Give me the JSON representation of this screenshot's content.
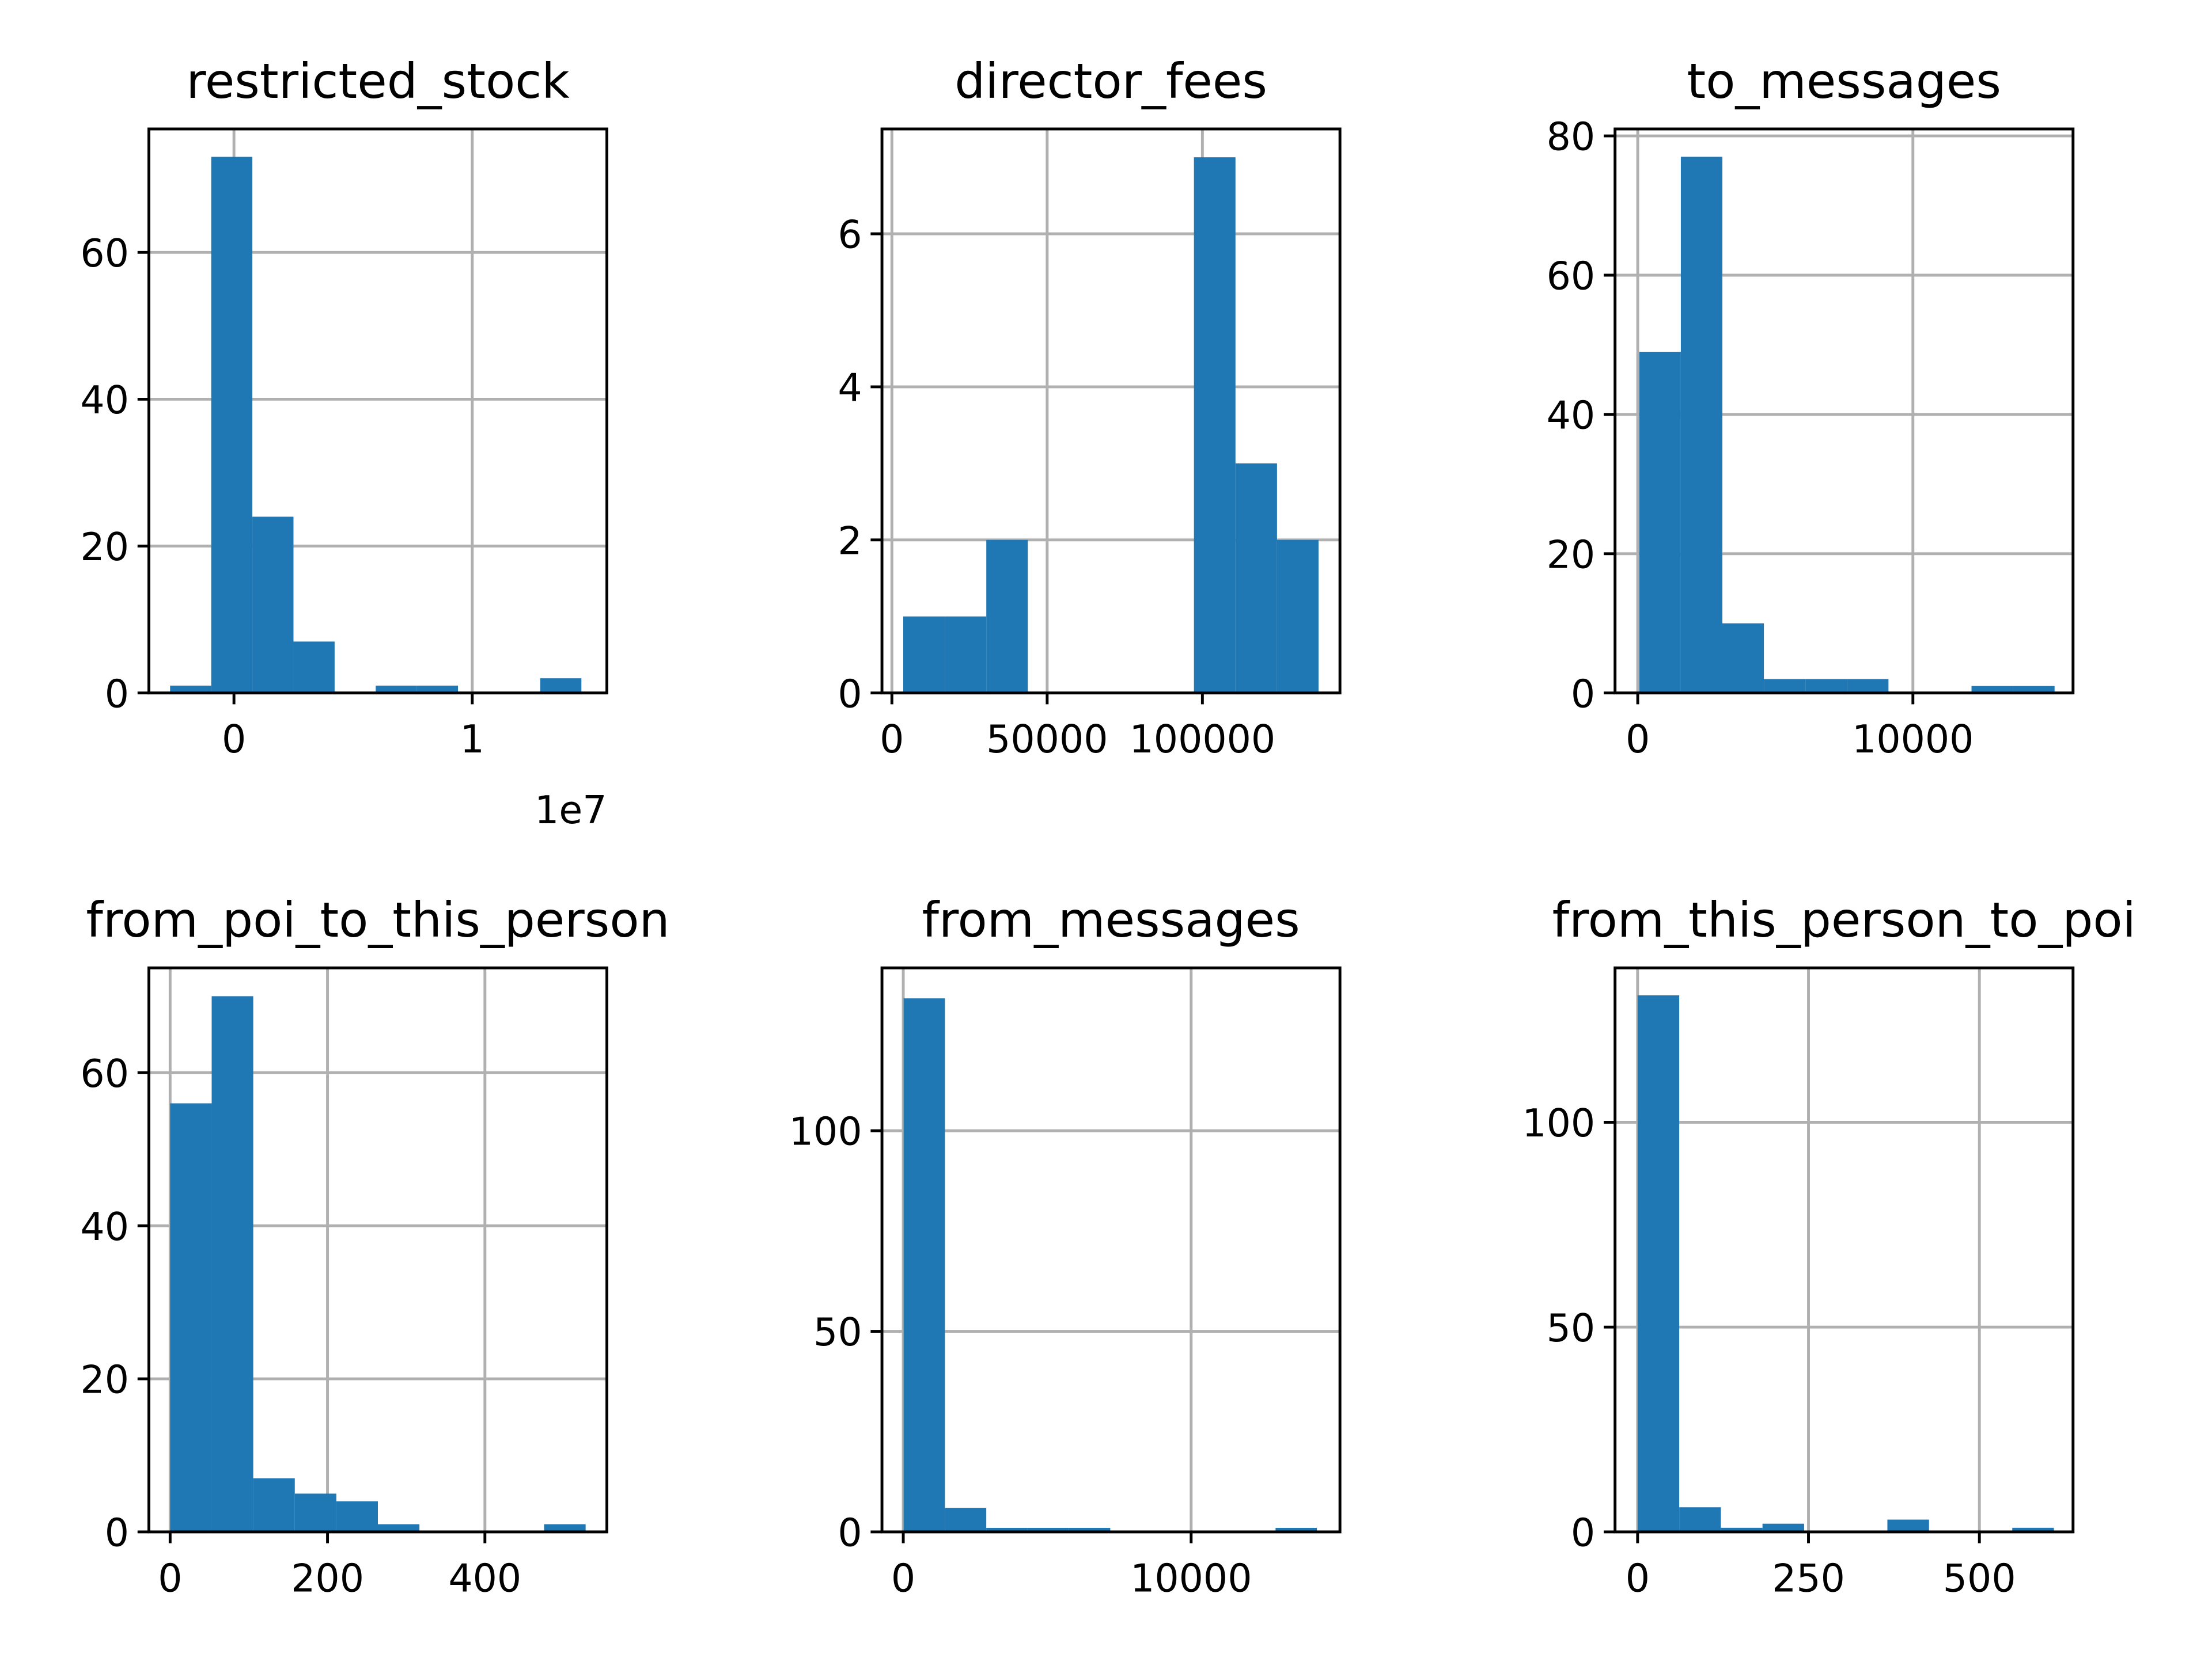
{
  "chart_data": [
    {
      "type": "histogram",
      "title": "restricted_stock",
      "color": "#1f77b4",
      "grid": true,
      "bins": [
        -0.268,
        -0.0954,
        0.0772,
        0.2498,
        0.4224,
        0.595,
        0.7676,
        0.9402,
        1.1128,
        1.2854,
        1.458
      ],
      "values": [
        1,
        73,
        24,
        7,
        0,
        1,
        1,
        0,
        0,
        2
      ],
      "xlim": [
        -0.357,
        1.565
      ],
      "xticks": [
        0,
        1
      ],
      "x_offset_label": "1e7",
      "ylim": [
        0,
        76.8
      ],
      "yticks": [
        0,
        20,
        40,
        60
      ]
    },
    {
      "type": "histogram",
      "title": "director_fees",
      "color": "#1f77b4",
      "grid": true,
      "bins": [
        3650,
        17025,
        30400,
        43775,
        57150,
        70525,
        83900,
        97275,
        110650,
        124025,
        137400
      ],
      "values": [
        1,
        1,
        2,
        0,
        0,
        0,
        0,
        7,
        3,
        2
      ],
      "xlim": [
        -3200,
        144300
      ],
      "xticks": [
        0,
        50000,
        100000
      ],
      "ylim": [
        0,
        7.37
      ],
      "yticks": [
        0,
        2,
        4,
        6
      ]
    },
    {
      "type": "histogram",
      "title": "to_messages",
      "color": "#1f77b4",
      "grid": true,
      "bins": [
        57,
        1566.2,
        3075.4,
        4584.6,
        6093.8,
        7603,
        9112.2,
        10621.4,
        12130.6,
        13639.8,
        15149
      ],
      "values": [
        49,
        77,
        10,
        2,
        2,
        2,
        0,
        0,
        1,
        1
      ],
      "xlim": [
        -825,
        15820
      ],
      "xticks": [
        0,
        10000
      ],
      "ylim": [
        0,
        81
      ],
      "yticks": [
        0,
        20,
        40,
        60,
        80
      ]
    },
    {
      "type": "histogram",
      "title": "from_poi_to_this_person",
      "color": "#1f77b4",
      "grid": true,
      "bins": [
        0,
        52.8,
        105.6,
        158.4,
        211.2,
        264,
        316.8,
        369.6,
        422.4,
        475.2,
        528
      ],
      "values": [
        56,
        70,
        7,
        5,
        4,
        1,
        0,
        0,
        0,
        1
      ],
      "xlim": [
        -27,
        555
      ],
      "xticks": [
        0,
        200,
        400
      ],
      "ylim": [
        0,
        73.7
      ],
      "yticks": [
        0,
        20,
        40,
        60
      ]
    },
    {
      "type": "histogram",
      "title": "from_messages",
      "color": "#1f77b4",
      "grid": true,
      "bins": [
        12,
        1447.6,
        2883.2,
        4318.8,
        5754.4,
        7190,
        8625.6,
        10061.2,
        11496.8,
        12932.4,
        14368
      ],
      "values": [
        133,
        6,
        1,
        1,
        1,
        0,
        0,
        0,
        0,
        1
      ],
      "xlim": [
        -740,
        15170
      ],
      "xticks": [
        0,
        10000
      ],
      "ylim": [
        0,
        140.6
      ],
      "yticks": [
        0,
        50,
        100
      ]
    },
    {
      "type": "histogram",
      "title": "from_this_person_to_poi",
      "color": "#1f77b4",
      "grid": true,
      "bins": [
        0,
        60.9,
        121.8,
        182.7,
        243.6,
        304.5,
        365.4,
        426.3,
        487.2,
        548.1,
        609
      ],
      "values": [
        131,
        6,
        1,
        2,
        0,
        0,
        3,
        0,
        0,
        1
      ],
      "xlim": [
        -33,
        637
      ],
      "xticks": [
        0,
        250,
        500
      ],
      "ylim": [
        0,
        137.7
      ],
      "yticks": [
        0,
        50,
        100
      ]
    }
  ]
}
